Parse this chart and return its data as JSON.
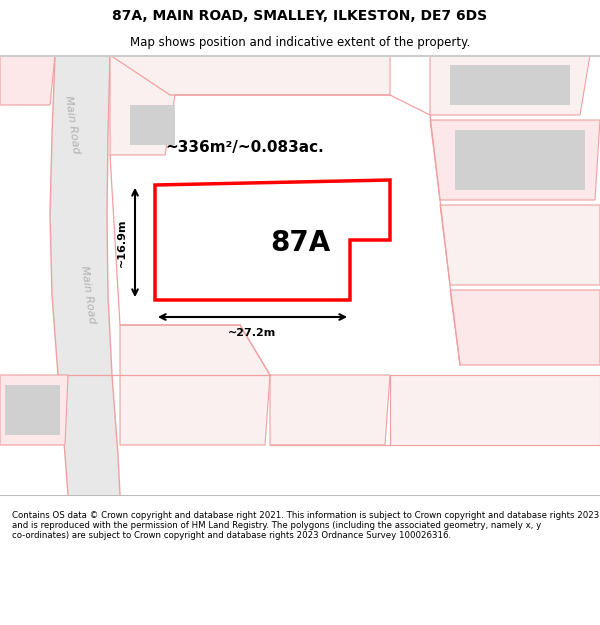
{
  "title": "87A, MAIN ROAD, SMALLEY, ILKESTON, DE7 6DS",
  "subtitle": "Map shows position and indicative extent of the property.",
  "footer": "Contains OS data © Crown copyright and database right 2021. This information is subject to Crown copyright and database rights 2023 and is reproduced with the permission of HM Land Registry. The polygons (including the associated geometry, namely x, y co-ordinates) are subject to Crown copyright and database rights 2023 Ordnance Survey 100026316.",
  "property_label": "87A",
  "area_label": "~336m²/~0.083ac.",
  "width_label": "~27.2m",
  "height_label": "~16.9m",
  "road_label": "Main Road",
  "road_label2": "Main Road",
  "map_bg": "#ffffff",
  "road_fill": "#e8e8e8",
  "road_edge": "#f0a0a0",
  "cadastral_color": "#f0a0a0",
  "building_fill": "#d0d0d0",
  "property_edge": "#ff0000",
  "title_fontsize": 10,
  "subtitle_fontsize": 8.5,
  "footer_fontsize": 6.2
}
